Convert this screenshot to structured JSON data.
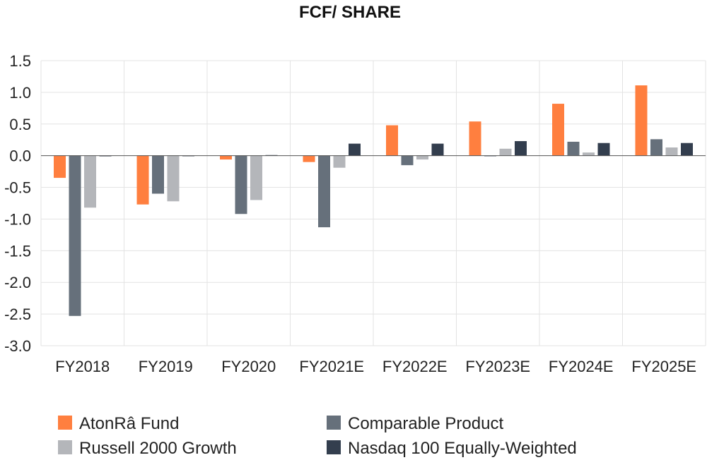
{
  "chart_data": {
    "type": "bar",
    "title": "FCF/ SHARE",
    "xlabel": "",
    "ylabel": "",
    "categories": [
      "FY2018",
      "FY2019",
      "FY2020",
      "FY2021E",
      "FY2022E",
      "FY2023E",
      "FY2024E",
      "FY2025E"
    ],
    "ylim": [
      -3.0,
      1.5
    ],
    "yticks": [
      "1.5",
      "1.0",
      "0.5",
      "0.0",
      "-0.5",
      "-1.0",
      "-1.5",
      "-2.0",
      "-2.5",
      "-3.0"
    ],
    "grid": true,
    "legend_position": "bottom",
    "series": [
      {
        "name": "AtonRâ Fund",
        "color": "#FF7F3F",
        "values": [
          -0.35,
          -0.77,
          -0.06,
          -0.1,
          0.48,
          0.54,
          0.82,
          1.11
        ]
      },
      {
        "name": "Comparable Product",
        "color": "#66707B",
        "values": [
          -2.53,
          -0.6,
          -0.92,
          -1.13,
          -0.15,
          -0.01,
          0.22,
          0.26
        ]
      },
      {
        "name": "Russell 2000 Growth",
        "color": "#B4B6BA",
        "values": [
          -0.82,
          -0.72,
          -0.7,
          -0.19,
          -0.06,
          0.11,
          0.05,
          0.13
        ]
      },
      {
        "name": "Nasdaq 100 Equally-Weighted",
        "color": "#333E4E",
        "values": [
          -0.01,
          0.0,
          0.01,
          0.19,
          0.19,
          0.23,
          0.2,
          0.2
        ]
      }
    ]
  }
}
